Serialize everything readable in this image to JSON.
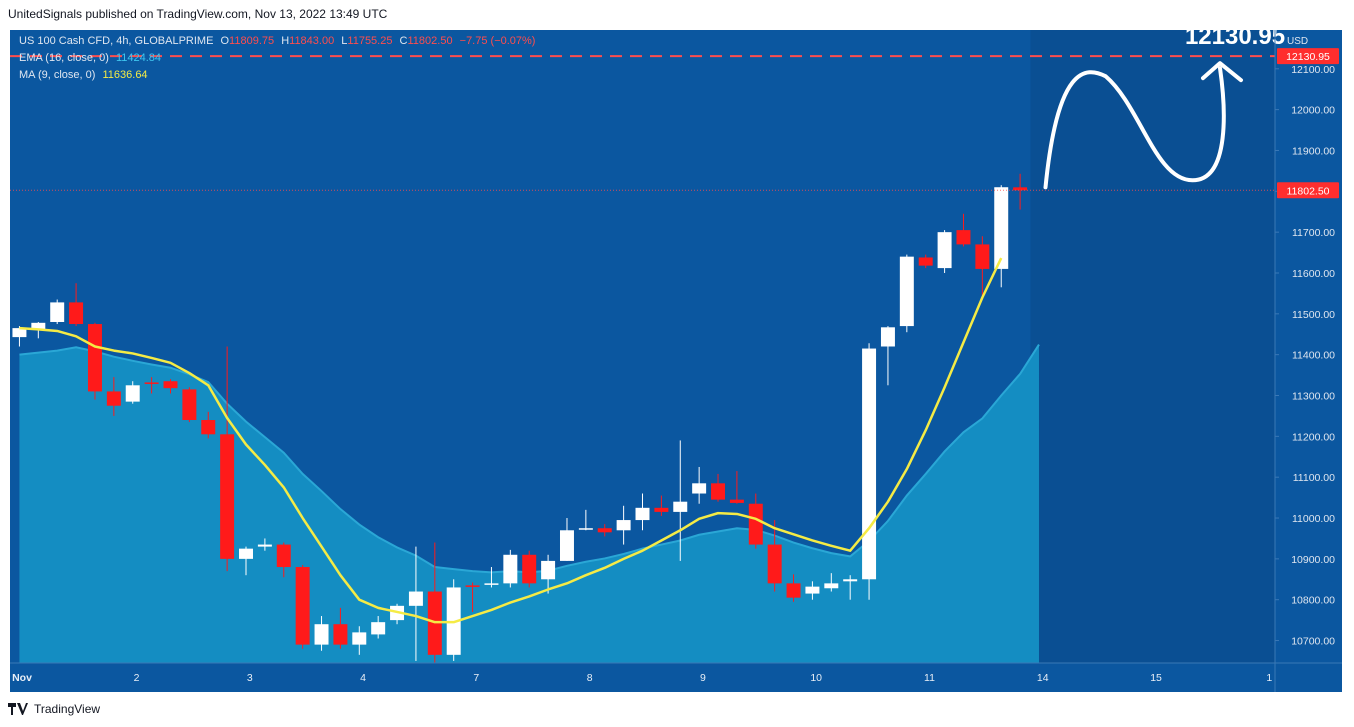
{
  "header": {
    "publisher_text": "UnitedSignals published on TradingView.com, Nov 13, 2022 13:49 UTC"
  },
  "legend": {
    "symbol": "US 100 Cash CFD, 4h, GLOBALPRIME",
    "open_label": "O",
    "open": "11809.75",
    "high_label": "H",
    "high": "11843.00",
    "low_label": "L",
    "low": "11755.25",
    "close_label": "C",
    "close": "11802.50",
    "change": "−7.75 (−0.07%)",
    "ema_label": "EMA (16, close, 0)",
    "ema_value": "11424.84",
    "ma_label": "MA (9, close, 0)",
    "ma_value": "11636.64"
  },
  "colors": {
    "background": "#0b57a0",
    "up_candle": "#ffffff",
    "down_candle": "#ff1a1a",
    "ema_fill": "#1590c4",
    "ma_line": "#f5eb45",
    "target_line": "#ff4d4d",
    "price_badge": "#ff2e2e"
  },
  "annotation": {
    "target_text": "12130.95"
  },
  "footer": {
    "brand": "TradingView"
  },
  "chart_data": {
    "type": "candlestick",
    "currency_label": "USD",
    "y_ticks": [
      "12100.00",
      "12000.00",
      "11900.00",
      "11800.00",
      "11700.00",
      "11600.00",
      "11500.00",
      "11400.00",
      "11300.00",
      "11200.00",
      "11100.00",
      "11000.00",
      "10900.00",
      "10800.00",
      "10700.00"
    ],
    "x_ticks": [
      {
        "label": "Nov",
        "bar": 0
      },
      {
        "label": "2",
        "bar": 6.7
      },
      {
        "label": "3",
        "bar": 12.7
      },
      {
        "label": "4",
        "bar": 18.7
      },
      {
        "label": "7",
        "bar": 24.7
      },
      {
        "label": "8",
        "bar": 30.7
      },
      {
        "label": "9",
        "bar": 36.7
      },
      {
        "label": "10",
        "bar": 42.7
      },
      {
        "label": "11",
        "bar": 48.7
      },
      {
        "label": "14",
        "bar": 54.7
      },
      {
        "label": "15",
        "bar": 60.7
      },
      {
        "label": "1",
        "bar": 66.7
      }
    ],
    "ylim": [
      10645,
      12195
    ],
    "bars_visible": 67,
    "candles": [
      {
        "o": 11443,
        "h": 11470,
        "l": 11420,
        "c": 11465
      },
      {
        "o": 11462,
        "h": 11480,
        "l": 11440,
        "c": 11478
      },
      {
        "o": 11480,
        "h": 11535,
        "l": 11475,
        "c": 11528
      },
      {
        "o": 11528,
        "h": 11575,
        "l": 11470,
        "c": 11475
      },
      {
        "o": 11475,
        "h": 11478,
        "l": 11290,
        "c": 11310
      },
      {
        "o": 11310,
        "h": 11345,
        "l": 11250,
        "c": 11275
      },
      {
        "o": 11285,
        "h": 11335,
        "l": 11280,
        "c": 11325
      },
      {
        "o": 11332,
        "h": 11345,
        "l": 11305,
        "c": 11330
      },
      {
        "o": 11335,
        "h": 11340,
        "l": 11305,
        "c": 11318
      },
      {
        "o": 11315,
        "h": 11320,
        "l": 11235,
        "c": 11240
      },
      {
        "o": 11240,
        "h": 11260,
        "l": 11195,
        "c": 11205
      },
      {
        "o": 11205,
        "h": 11420,
        "l": 10870,
        "c": 10900
      },
      {
        "o": 10900,
        "h": 10930,
        "l": 10860,
        "c": 10925
      },
      {
        "o": 10930,
        "h": 10950,
        "l": 10920,
        "c": 10935
      },
      {
        "o": 10935,
        "h": 10940,
        "l": 10855,
        "c": 10880
      },
      {
        "o": 10880,
        "h": 10885,
        "l": 10680,
        "c": 10690
      },
      {
        "o": 10690,
        "h": 10760,
        "l": 10675,
        "c": 10740
      },
      {
        "o": 10740,
        "h": 10780,
        "l": 10680,
        "c": 10690
      },
      {
        "o": 10690,
        "h": 10735,
        "l": 10665,
        "c": 10720
      },
      {
        "o": 10715,
        "h": 10760,
        "l": 10705,
        "c": 10745
      },
      {
        "o": 10750,
        "h": 10790,
        "l": 10740,
        "c": 10785
      },
      {
        "o": 10785,
        "h": 10930,
        "l": 10650,
        "c": 10820
      },
      {
        "o": 10820,
        "h": 10940,
        "l": 10645,
        "c": 10665
      },
      {
        "o": 10665,
        "h": 10850,
        "l": 10650,
        "c": 10830
      },
      {
        "o": 10835,
        "h": 10842,
        "l": 10770,
        "c": 10832
      },
      {
        "o": 10837,
        "h": 10880,
        "l": 10830,
        "c": 10840
      },
      {
        "o": 10840,
        "h": 10922,
        "l": 10830,
        "c": 10910
      },
      {
        "o": 10910,
        "h": 10920,
        "l": 10830,
        "c": 10840
      },
      {
        "o": 10850,
        "h": 10910,
        "l": 10815,
        "c": 10895
      },
      {
        "o": 10895,
        "h": 11000,
        "l": 10895,
        "c": 10970
      },
      {
        "o": 10975,
        "h": 11020,
        "l": 10970,
        "c": 10975
      },
      {
        "o": 10975,
        "h": 10985,
        "l": 10955,
        "c": 10965
      },
      {
        "o": 10970,
        "h": 11030,
        "l": 10935,
        "c": 10995
      },
      {
        "o": 10995,
        "h": 11060,
        "l": 10970,
        "c": 11025
      },
      {
        "o": 11025,
        "h": 11055,
        "l": 11005,
        "c": 11015
      },
      {
        "o": 11015,
        "h": 11190,
        "l": 10895,
        "c": 11040
      },
      {
        "o": 11060,
        "h": 11125,
        "l": 11035,
        "c": 11085
      },
      {
        "o": 11085,
        "h": 11108,
        "l": 11040,
        "c": 11045
      },
      {
        "o": 11045,
        "h": 11115,
        "l": 11035,
        "c": 11037
      },
      {
        "o": 11035,
        "h": 11060,
        "l": 10925,
        "c": 10935
      },
      {
        "o": 10935,
        "h": 10995,
        "l": 10820,
        "c": 10840
      },
      {
        "o": 10840,
        "h": 10862,
        "l": 10795,
        "c": 10805
      },
      {
        "o": 10815,
        "h": 10845,
        "l": 10800,
        "c": 10832
      },
      {
        "o": 10828,
        "h": 10865,
        "l": 10820,
        "c": 10840
      },
      {
        "o": 10845,
        "h": 10860,
        "l": 10800,
        "c": 10850
      },
      {
        "o": 10850,
        "h": 11428,
        "l": 10800,
        "c": 11415
      },
      {
        "o": 11420,
        "h": 11470,
        "l": 11325,
        "c": 11467
      },
      {
        "o": 11470,
        "h": 11645,
        "l": 11455,
        "c": 11640
      },
      {
        "o": 11638,
        "h": 11645,
        "l": 11612,
        "c": 11618
      },
      {
        "o": 11612,
        "h": 11705,
        "l": 11600,
        "c": 11700
      },
      {
        "o": 11705,
        "h": 11745,
        "l": 11665,
        "c": 11670
      },
      {
        "o": 11670,
        "h": 11690,
        "l": 11540,
        "c": 11610
      },
      {
        "o": 11610,
        "h": 11815,
        "l": 11565,
        "c": 11810
      },
      {
        "o": 11809.75,
        "h": 11843,
        "l": 11755.25,
        "c": 11802.5
      }
    ],
    "series": [
      {
        "name": "MA (9, close, 0)",
        "values": [
          11465,
          11462,
          11458,
          11445,
          11420,
          11410,
          11403,
          11392,
          11380,
          11355,
          11325,
          11245,
          11180,
          11130,
          11075,
          11000,
          10930,
          10860,
          10800,
          10780,
          10770,
          10760,
          10745,
          10745,
          10760,
          10775,
          10793,
          10808,
          10825,
          10840,
          10860,
          10878,
          10900,
          10920,
          10945,
          10970,
          10998,
          11012,
          11010,
          10998,
          10975,
          10960,
          10945,
          10932,
          10920,
          10975,
          11040,
          11120,
          11215,
          11320,
          11430,
          11540,
          11636.64
        ]
      },
      {
        "name": "EMA (16, close, 0)",
        "values": [
          11400,
          11405,
          11410,
          11418,
          11408,
          11395,
          11385,
          11376,
          11368,
          11352,
          11333,
          11280,
          11236,
          11198,
          11160,
          11108,
          11066,
          11022,
          10984,
          10953,
          10928,
          10908,
          10880,
          10875,
          10870,
          10867,
          10870,
          10867,
          10871,
          10883,
          10893,
          10901,
          10912,
          10925,
          10935,
          10945,
          10959,
          10967,
          10975,
          10971,
          10957,
          10940,
          10926,
          10914,
          10906,
          10944,
          10993,
          11055,
          11108,
          11163,
          11210,
          11244,
          11300,
          11353,
          11424.84
        ]
      }
    ],
    "price_labels": {
      "target": "12130.95",
      "target_value": 12130.95,
      "last": "11802.50",
      "last_value": 11802.5
    }
  }
}
